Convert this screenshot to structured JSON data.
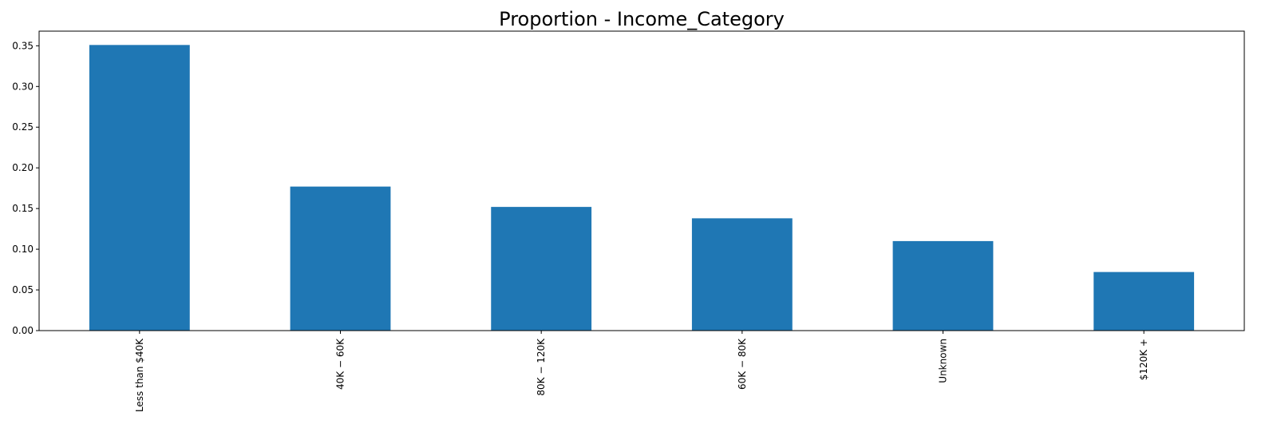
{
  "chart_data": {
    "type": "bar",
    "title": "Proportion - Income_Category",
    "xlabel": "",
    "ylabel": "",
    "categories": [
      "Less than $40K",
      "$40K - $60K",
      "$80K - $120K",
      "$60K - $80K",
      "Unknown",
      "$120K +"
    ],
    "category_display": [
      "Less than $40K",
      "40K − 60K",
      "80K − 120K",
      "60K − 80K",
      "Unknown",
      "$120K +"
    ],
    "values": [
      0.351,
      0.177,
      0.152,
      0.138,
      0.11,
      0.072
    ],
    "ylim": [
      0,
      0.368
    ],
    "yticks": [
      0.0,
      0.05,
      0.1,
      0.15,
      0.2,
      0.25,
      0.3,
      0.35
    ],
    "ytick_labels": [
      "0.00",
      "0.05",
      "0.10",
      "0.15",
      "0.20",
      "0.25",
      "0.30",
      "0.35"
    ],
    "bar_color": "#1f77b4",
    "grid": false,
    "legend": "none"
  }
}
